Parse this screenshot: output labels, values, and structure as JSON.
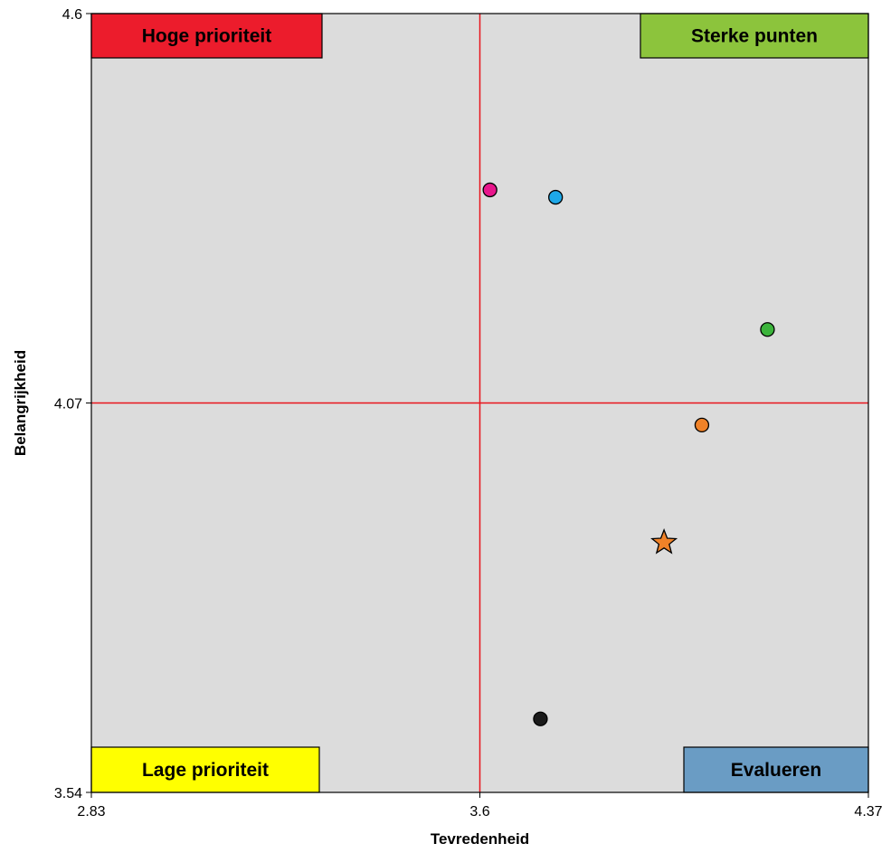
{
  "chart_data": {
    "type": "scatter",
    "title": "",
    "xlabel": "Tevredenheid",
    "ylabel": "Belangrijkheid",
    "xlim": [
      2.83,
      4.37
    ],
    "ylim": [
      3.54,
      4.6
    ],
    "x_ticks": [
      "2.83",
      "3.6",
      "4.37"
    ],
    "y_ticks": [
      "3.54",
      "4.07",
      "4.6"
    ],
    "x_divider": 3.6,
    "y_divider": 4.07,
    "grid": false,
    "background": "#dcdcdc",
    "divider_color": "#e8141c",
    "quadrants": [
      {
        "label": "Hoge prioriteit",
        "position": "top-left",
        "color": "#ec1c2c"
      },
      {
        "label": "Sterke punten",
        "position": "top-right",
        "color": "#8cc43c"
      },
      {
        "label": "Lage prioriteit",
        "position": "bottom-left",
        "color": "#ffff00"
      },
      {
        "label": "Evalueren",
        "position": "bottom-right",
        "color": "#6a9cc4"
      }
    ],
    "points": [
      {
        "x": 3.62,
        "y": 4.36,
        "color": "#e8168c",
        "marker": "circle"
      },
      {
        "x": 3.75,
        "y": 4.35,
        "color": "#1ea8e8",
        "marker": "circle"
      },
      {
        "x": 4.17,
        "y": 4.17,
        "color": "#3cb43c",
        "marker": "circle"
      },
      {
        "x": 4.04,
        "y": 4.04,
        "color": "#f08228",
        "marker": "circle"
      },
      {
        "x": 3.965,
        "y": 3.88,
        "color": "#f08228",
        "marker": "star"
      },
      {
        "x": 3.72,
        "y": 3.64,
        "color": "#1a1a1a",
        "marker": "circle"
      }
    ]
  }
}
